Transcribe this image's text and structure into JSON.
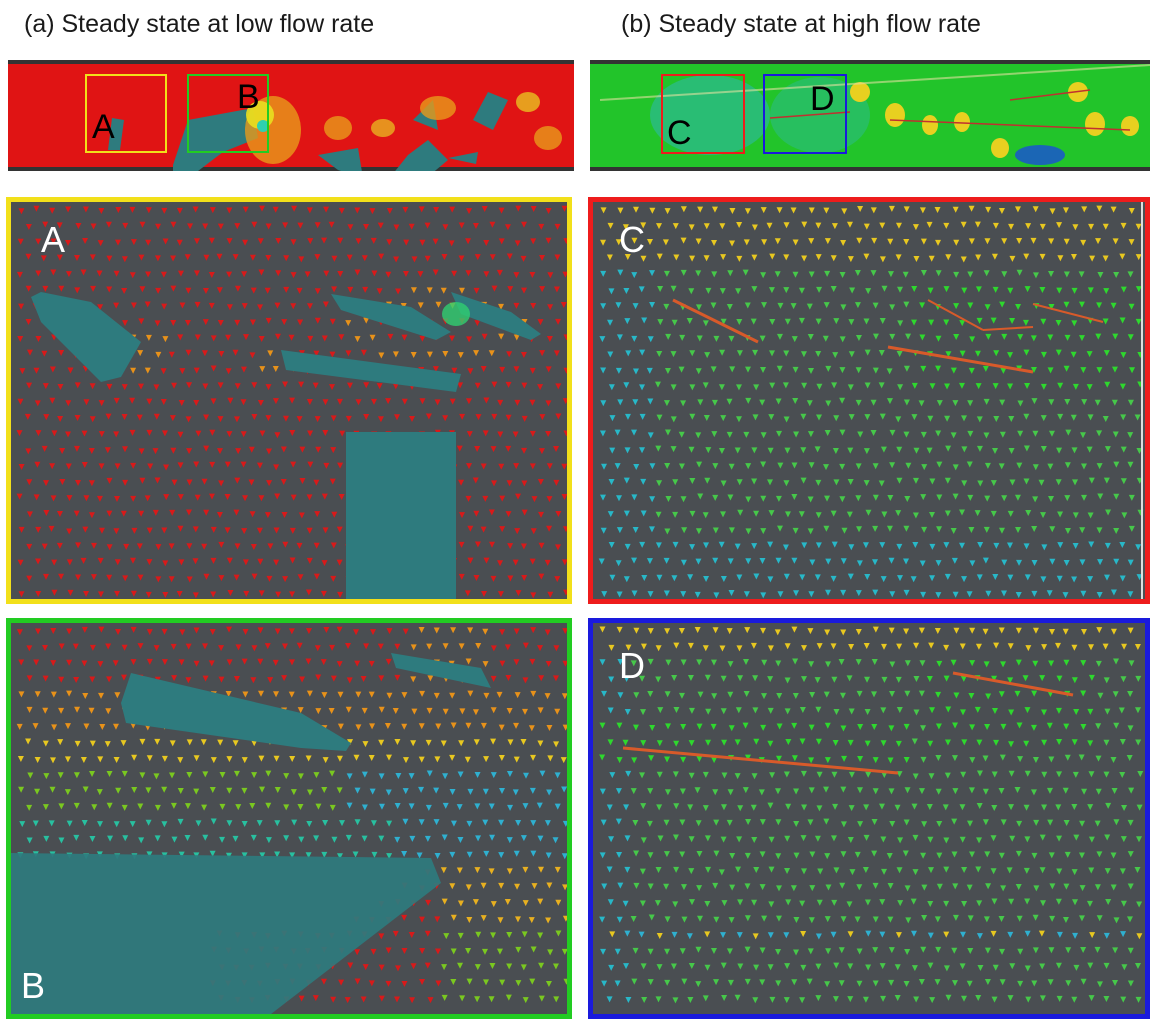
{
  "captions": {
    "left": "(a) Steady state at low flow rate",
    "right": "(b) Steady state at high flow rate"
  },
  "regions": [
    {
      "label": "A",
      "frame_color": "#f2e01a",
      "scheme": "low"
    },
    {
      "label": "B",
      "frame_color": "#22cc22",
      "scheme": "low"
    },
    {
      "label": "C",
      "frame_color": "#ee1c1c",
      "scheme": "high"
    },
    {
      "label": "D",
      "frame_color": "#1a1adc",
      "scheme": "high"
    }
  ],
  "colors": {
    "background": "#4a4e52",
    "solid": "#2e7b7e",
    "low_flow_vector": "#d81a1a",
    "high_flow_vector": "#28c828",
    "overview_low": "#e01414",
    "overview_high": "#22c42a"
  }
}
